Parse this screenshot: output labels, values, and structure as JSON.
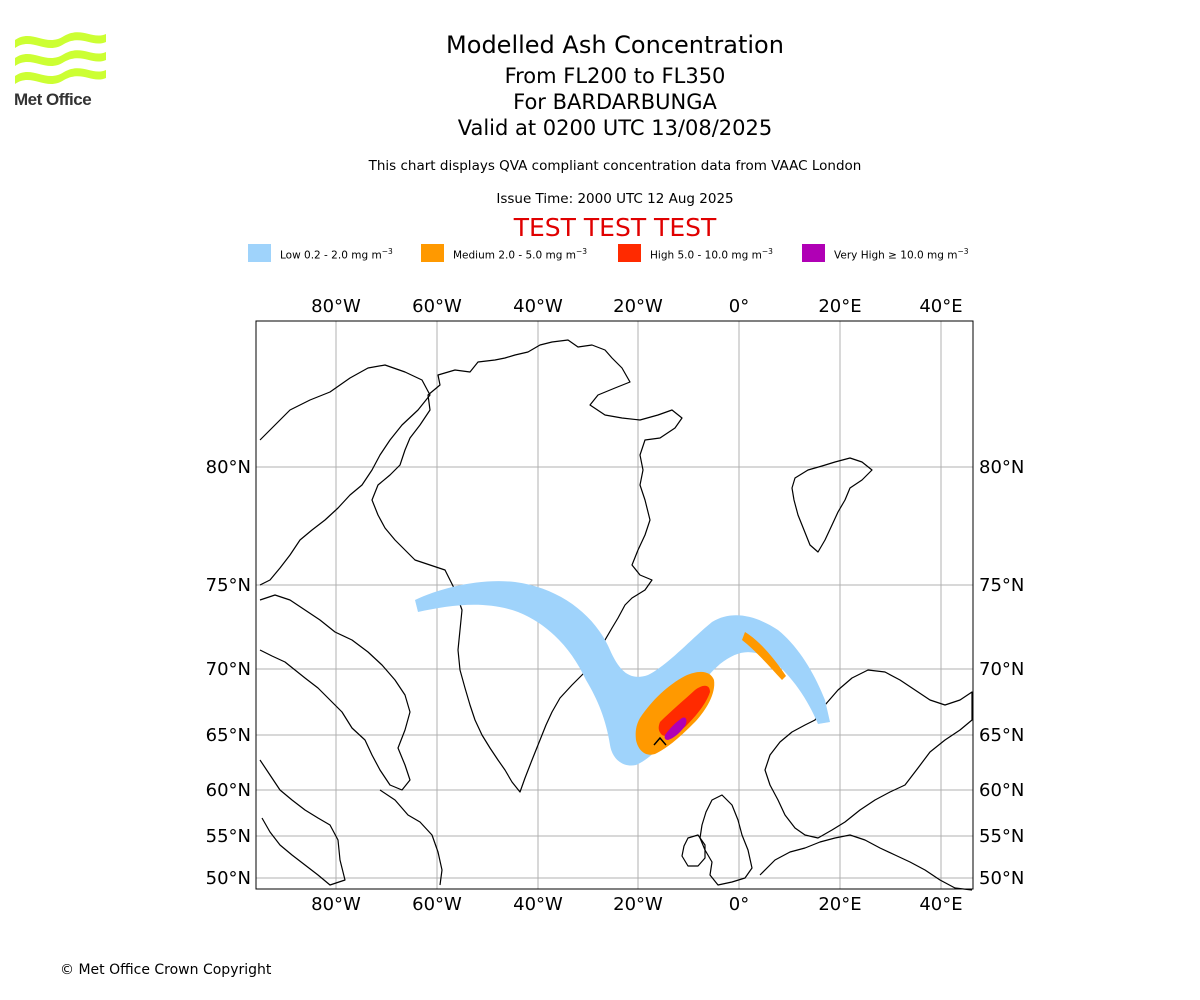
{
  "header": {
    "logo_text": "Met Office",
    "title": "Modelled Ash Concentration",
    "level_range": "From FL200 to FL350",
    "volcano": "For BARDARBUNGA",
    "valid_time": "Valid at 0200 UTC 13/08/2025",
    "description": "This chart displays QVA compliant concentration data from VAAC London",
    "issue_time": "Issue Time: 2000 UTC 12 Aug 2025",
    "test_banner": "TEST TEST TEST"
  },
  "legend": {
    "unit_suffix": "mg m",
    "unit_exp": "−3",
    "items": [
      {
        "label": "Low 0.2 - 2.0",
        "color": "#9fd3fb"
      },
      {
        "label": "Medium 2.0 - 5.0",
        "color": "#ff9900"
      },
      {
        "label": "High 5.0 - 10.0",
        "color": "#ff2a00"
      },
      {
        "label": "Very High  ≥  10.0",
        "color": "#b000b5"
      }
    ]
  },
  "map": {
    "longitude_ticks": [
      "80°W",
      "60°W",
      "40°W",
      "20°W",
      "0°",
      "20°E",
      "40°E"
    ],
    "latitude_ticks": [
      "80°N",
      "75°N",
      "70°N",
      "65°N",
      "60°N",
      "55°N",
      "50°N"
    ],
    "volcano_location": {
      "lat": 64.64,
      "lon": -17.53
    },
    "grid": true
  },
  "footer": {
    "copyright": "© Met Office Crown Copyright"
  },
  "colors": {
    "logo_green": "#ccff33",
    "test_red": "#e00000",
    "gridline": "#b0b0b0"
  }
}
